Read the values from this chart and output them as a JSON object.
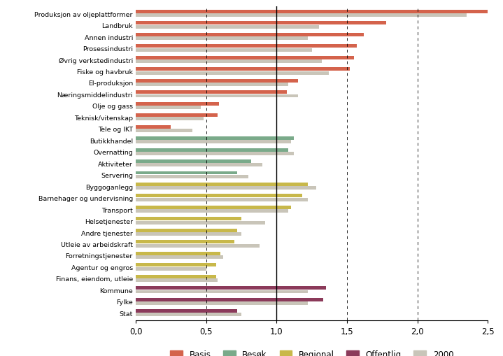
{
  "categories": [
    "Produksjon av oljeplattformer",
    "Landbruk",
    "Annen industri",
    "Prosessindustri",
    "Øvrig verkstedindustri",
    "Fiske og havbruk",
    "El-produksjon",
    "Næringsmiddelindustri",
    "Olje og gass",
    "Teknisk/vitenskap",
    "Tele og IKT",
    "Butikkhandel",
    "Overnatting",
    "Aktiviteter",
    "Servering",
    "Byggoganlegg",
    "Barnehager og undervisning",
    "Transport",
    "Helsetjenester",
    "Andre tjenester",
    "Utleie av arbeidskraft",
    "Forretningstjenester",
    "Agentur og engros",
    "Finans, eiendom, utleie",
    "Kommune",
    "Fylke",
    "Stat"
  ],
  "values_2019": [
    2.5,
    1.78,
    1.62,
    1.57,
    1.55,
    1.52,
    1.15,
    1.07,
    0.59,
    0.58,
    0.25,
    1.12,
    1.08,
    0.82,
    0.72,
    1.22,
    1.18,
    1.1,
    0.75,
    0.72,
    0.7,
    0.6,
    0.57,
    0.57,
    1.35,
    1.33,
    0.72
  ],
  "values_2000": [
    2.35,
    1.3,
    1.22,
    1.25,
    1.32,
    1.37,
    1.08,
    1.15,
    0.46,
    0.48,
    0.4,
    1.1,
    1.12,
    0.9,
    0.8,
    1.28,
    1.22,
    1.08,
    0.92,
    0.75,
    0.88,
    0.62,
    0.5,
    0.58,
    1.22,
    1.22,
    0.75
  ],
  "category_types": [
    "Basis",
    "Basis",
    "Basis",
    "Basis",
    "Basis",
    "Basis",
    "Basis",
    "Basis",
    "Basis",
    "Basis",
    "Basis",
    "Besøk",
    "Besøk",
    "Besøk",
    "Besøk",
    "Regional",
    "Regional",
    "Regional",
    "Regional",
    "Regional",
    "Regional",
    "Regional",
    "Regional",
    "Regional",
    "Offentlig",
    "Offentlig",
    "Offentlig"
  ],
  "color_Basis": "#d4634c",
  "color_Besok": "#7aaa8a",
  "color_Regional": "#c8b84a",
  "color_Offentlig": "#8b3a5a",
  "color_2000": "#c9c5b9",
  "xlim_max": 2.5,
  "xtick_values": [
    0.0,
    0.5,
    1.0,
    1.5,
    2.0,
    2.5
  ],
  "xtick_labels": [
    "0,0",
    "0,5",
    "1,0",
    "1,5",
    "2,0",
    "2,5"
  ],
  "solid_vline": 1.0,
  "dashed_vlines": [
    0.5,
    1.5,
    2.0
  ],
  "figsize": [
    7.19,
    5.1
  ],
  "dpi": 100
}
